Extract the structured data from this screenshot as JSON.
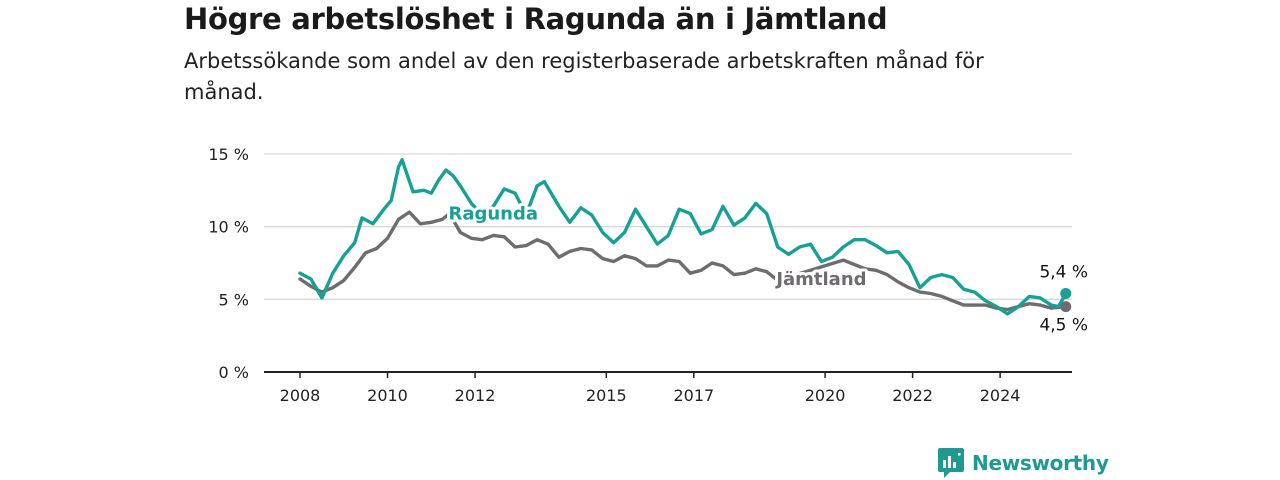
{
  "title": "Högre arbetslöshet i Ragunda än i Jämtland",
  "subtitle": "Arbetssökande som andel av den registerbaserade arbetskraften månad för månad.",
  "brand": {
    "name": "Newsworthy",
    "icon": "newsworthy-logo-icon"
  },
  "colors": {
    "ragunda": "#17a095",
    "jamtland": "#6f6c70",
    "grid": "#d9d9d9",
    "axis": "#222222"
  },
  "chart_data": {
    "type": "line",
    "title": "Högre arbetslöshet i Ragunda än i Jämtland",
    "xlabel": "",
    "ylabel": "",
    "xlim": [
      "2007-10",
      "2026-01"
    ],
    "ylim": [
      0,
      15
    ],
    "grid": true,
    "legend": "inline labels",
    "xticks": [
      "2008",
      "2010",
      "2012",
      "2015",
      "2017",
      "2020",
      "2022",
      "2024"
    ],
    "xtick_dates": [
      "2008-01",
      "2010-01",
      "2012-01",
      "2015-01",
      "2017-01",
      "2020-01",
      "2022-01",
      "2024-01"
    ],
    "yticks": [
      {
        "value": 0,
        "label": "0 %"
      },
      {
        "value": 5,
        "label": "5 %"
      },
      {
        "value": 10,
        "label": "10 %"
      },
      {
        "value": 15,
        "label": "15 %"
      }
    ],
    "series": [
      {
        "name": "Ragunda",
        "label_at": "2012-06",
        "label_value": 10.5,
        "end_label": "5,4 %",
        "points": [
          [
            "2008-01",
            6.8
          ],
          [
            "2008-04",
            6.4
          ],
          [
            "2008-07",
            5.1
          ],
          [
            "2008-10",
            6.8
          ],
          [
            "2009-01",
            8.0
          ],
          [
            "2009-04",
            8.9
          ],
          [
            "2009-06",
            10.6
          ],
          [
            "2009-09",
            10.2
          ],
          [
            "2009-12",
            11.2
          ],
          [
            "2010-02",
            11.8
          ],
          [
            "2010-04",
            14.1
          ],
          [
            "2010-05",
            14.6
          ],
          [
            "2010-08",
            12.4
          ],
          [
            "2010-11",
            12.5
          ],
          [
            "2011-01",
            12.3
          ],
          [
            "2011-03",
            13.2
          ],
          [
            "2011-05",
            13.9
          ],
          [
            "2011-07",
            13.5
          ],
          [
            "2011-09",
            12.8
          ],
          [
            "2011-12",
            11.6
          ],
          [
            "2012-03",
            10.8
          ],
          [
            "2012-06",
            11.4
          ],
          [
            "2012-09",
            12.6
          ],
          [
            "2012-12",
            12.3
          ],
          [
            "2013-03",
            10.8
          ],
          [
            "2013-06",
            12.8
          ],
          [
            "2013-08",
            13.1
          ],
          [
            "2013-12",
            11.4
          ],
          [
            "2014-03",
            10.3
          ],
          [
            "2014-06",
            11.3
          ],
          [
            "2014-09",
            10.8
          ],
          [
            "2014-12",
            9.6
          ],
          [
            "2015-03",
            8.9
          ],
          [
            "2015-06",
            9.6
          ],
          [
            "2015-09",
            11.2
          ],
          [
            "2015-12",
            10.0
          ],
          [
            "2016-03",
            8.8
          ],
          [
            "2016-06",
            9.4
          ],
          [
            "2016-09",
            11.2
          ],
          [
            "2016-12",
            10.9
          ],
          [
            "2017-03",
            9.5
          ],
          [
            "2017-06",
            9.8
          ],
          [
            "2017-09",
            11.4
          ],
          [
            "2017-12",
            10.1
          ],
          [
            "2018-03",
            10.6
          ],
          [
            "2018-06",
            11.6
          ],
          [
            "2018-09",
            10.9
          ],
          [
            "2018-12",
            8.6
          ],
          [
            "2019-03",
            8.1
          ],
          [
            "2019-06",
            8.6
          ],
          [
            "2019-09",
            8.8
          ],
          [
            "2019-12",
            7.6
          ],
          [
            "2020-03",
            7.9
          ],
          [
            "2020-06",
            8.6
          ],
          [
            "2020-09",
            9.1
          ],
          [
            "2020-12",
            9.1
          ],
          [
            "2021-03",
            8.7
          ],
          [
            "2021-06",
            8.2
          ],
          [
            "2021-09",
            8.3
          ],
          [
            "2021-12",
            7.4
          ],
          [
            "2022-03",
            5.8
          ],
          [
            "2022-06",
            6.5
          ],
          [
            "2022-09",
            6.7
          ],
          [
            "2022-12",
            6.5
          ],
          [
            "2023-03",
            5.7
          ],
          [
            "2023-06",
            5.5
          ],
          [
            "2023-09",
            4.9
          ],
          [
            "2023-12",
            4.5
          ],
          [
            "2024-03",
            4.0
          ],
          [
            "2024-06",
            4.5
          ],
          [
            "2024-09",
            5.2
          ],
          [
            "2024-12",
            5.1
          ],
          [
            "2025-03",
            4.6
          ],
          [
            "2025-05",
            4.5
          ],
          [
            "2025-07",
            5.4
          ]
        ]
      },
      {
        "name": "Jämtland",
        "label_at": "2019-12",
        "label_value": 6.0,
        "end_label": "4,5 %",
        "points": [
          [
            "2008-01",
            6.4
          ],
          [
            "2008-04",
            5.9
          ],
          [
            "2008-07",
            5.5
          ],
          [
            "2008-10",
            5.8
          ],
          [
            "2009-01",
            6.3
          ],
          [
            "2009-04",
            7.2
          ],
          [
            "2009-07",
            8.2
          ],
          [
            "2009-10",
            8.5
          ],
          [
            "2010-01",
            9.2
          ],
          [
            "2010-04",
            10.5
          ],
          [
            "2010-07",
            11.0
          ],
          [
            "2010-10",
            10.2
          ],
          [
            "2011-01",
            10.3
          ],
          [
            "2011-04",
            10.5
          ],
          [
            "2011-06",
            10.9
          ],
          [
            "2011-09",
            9.6
          ],
          [
            "2011-12",
            9.2
          ],
          [
            "2012-03",
            9.1
          ],
          [
            "2012-06",
            9.4
          ],
          [
            "2012-09",
            9.3
          ],
          [
            "2012-12",
            8.6
          ],
          [
            "2013-03",
            8.7
          ],
          [
            "2013-06",
            9.1
          ],
          [
            "2013-09",
            8.8
          ],
          [
            "2013-12",
            7.9
          ],
          [
            "2014-03",
            8.3
          ],
          [
            "2014-06",
            8.5
          ],
          [
            "2014-09",
            8.4
          ],
          [
            "2014-12",
            7.8
          ],
          [
            "2015-03",
            7.6
          ],
          [
            "2015-06",
            8.0
          ],
          [
            "2015-09",
            7.8
          ],
          [
            "2015-12",
            7.3
          ],
          [
            "2016-03",
            7.3
          ],
          [
            "2016-06",
            7.7
          ],
          [
            "2016-09",
            7.6
          ],
          [
            "2016-12",
            6.8
          ],
          [
            "2017-03",
            7.0
          ],
          [
            "2017-06",
            7.5
          ],
          [
            "2017-09",
            7.3
          ],
          [
            "2017-12",
            6.7
          ],
          [
            "2018-03",
            6.8
          ],
          [
            "2018-06",
            7.1
          ],
          [
            "2018-09",
            6.9
          ],
          [
            "2018-12",
            6.3
          ],
          [
            "2020-06",
            7.7
          ],
          [
            "2020-09",
            7.4
          ],
          [
            "2020-12",
            7.1
          ],
          [
            "2021-03",
            7.0
          ],
          [
            "2021-06",
            6.7
          ],
          [
            "2021-09",
            6.2
          ],
          [
            "2021-12",
            5.8
          ],
          [
            "2022-03",
            5.5
          ],
          [
            "2022-06",
            5.4
          ],
          [
            "2022-09",
            5.2
          ],
          [
            "2022-12",
            4.9
          ],
          [
            "2023-03",
            4.6
          ],
          [
            "2023-06",
            4.6
          ],
          [
            "2023-09",
            4.6
          ],
          [
            "2023-12",
            4.4
          ],
          [
            "2024-03",
            4.3
          ],
          [
            "2024-06",
            4.5
          ],
          [
            "2024-09",
            4.7
          ],
          [
            "2024-12",
            4.6
          ],
          [
            "2025-03",
            4.4
          ],
          [
            "2025-07",
            4.5
          ]
        ]
      }
    ]
  }
}
